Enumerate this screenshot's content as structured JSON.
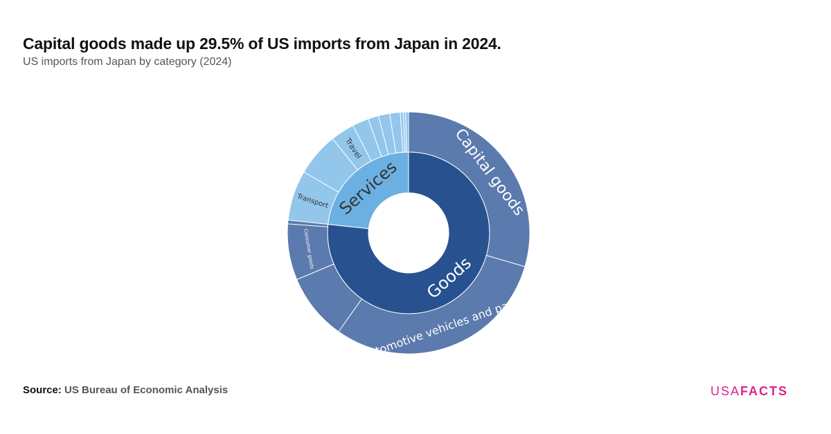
{
  "header": {
    "title": "Capital goods made up 29.5% of US imports from Japan in 2024.",
    "subtitle": "US imports from Japan by category (2024)"
  },
  "footer": {
    "source_label": "Source:",
    "source_text": "US Bureau of Economic Analysis",
    "logo_light": "USA",
    "logo_bold": "FACTS"
  },
  "chart_data": {
    "type": "sunburst",
    "unit": "percent of total",
    "colors": {
      "goods": "#27528f",
      "goods_children": "#5b7aad",
      "services": "#6cb0e2",
      "services_children": "#93c6eb"
    },
    "series": [
      {
        "name": "Goods",
        "value": 76.7,
        "color_key": "goods",
        "children": [
          {
            "name": "Capital goods",
            "value": 29.5
          },
          {
            "name": "Automotive vehicles and parts",
            "value": 30.3
          },
          {
            "name": "",
            "value": 8.9
          },
          {
            "name": "Consumer goods",
            "value": 7.5
          },
          {
            "name": "",
            "value": 0.5
          }
        ]
      },
      {
        "name": "Services",
        "value": 23.3,
        "color_key": "services",
        "children": [
          {
            "name": "Transport",
            "value": 6.7
          },
          {
            "name": "",
            "value": 5.8
          },
          {
            "name": "Travel",
            "value": 3.2
          },
          {
            "name": "",
            "value": 2.2
          },
          {
            "name": "",
            "value": 1.4
          },
          {
            "name": "",
            "value": 1.5
          },
          {
            "name": "",
            "value": 1.4
          },
          {
            "name": "",
            "value": 0.4
          },
          {
            "name": "",
            "value": 0.3
          },
          {
            "name": "",
            "value": 0.4
          }
        ]
      }
    ]
  }
}
